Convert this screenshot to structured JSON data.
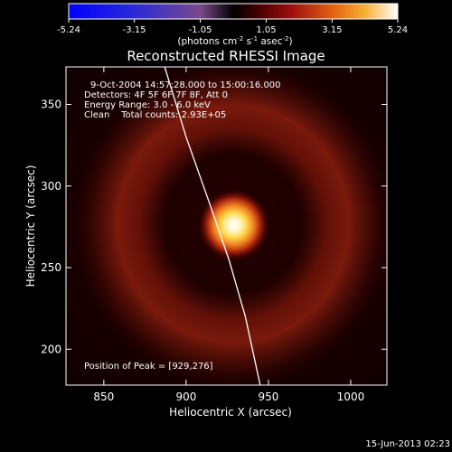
{
  "chart_data": {
    "type": "heatmap",
    "title": "Reconstructed RHESSI Image",
    "colorbar": {
      "ticks": [
        "-5.24",
        "-3.15",
        "-1.05",
        "1.05",
        "3.15",
        "5.24"
      ],
      "range": [
        -5.24,
        5.24
      ],
      "units_main": "(photons cm",
      "units_exp1": "-2",
      "units_mid": " s",
      "units_exp2": "-1",
      "units_tail": " asec",
      "units_exp3": "-2",
      "units_close": ")"
    },
    "info_lines": [
      "9-Oct-2004 14:57:28.000 to 15:00:16.000",
      "Detectors: 4F 5F 6F 7F 8F, Att 0",
      "Energy Range: 3.0 - 6.0 keV",
      "Clean    Total counts: 2.93E+05"
    ],
    "peak_label": "Position of Peak = [929,276]",
    "peak": [
      929,
      276
    ],
    "xlabel": "Heliocentric X (arcsec)",
    "ylabel": "Heliocentric Y (arcsec)",
    "xlim": [
      827,
      1022
    ],
    "ylim": [
      178,
      373
    ],
    "xticks": [
      850,
      900,
      950,
      1000
    ],
    "yticks": [
      200,
      250,
      300,
      350
    ],
    "limb": [
      [
        887,
        373
      ],
      [
        900,
        330
      ],
      [
        914,
        290
      ],
      [
        926,
        255
      ],
      [
        936,
        220
      ],
      [
        945,
        178
      ]
    ],
    "footer": "15-Jun-2013 02:23"
  }
}
